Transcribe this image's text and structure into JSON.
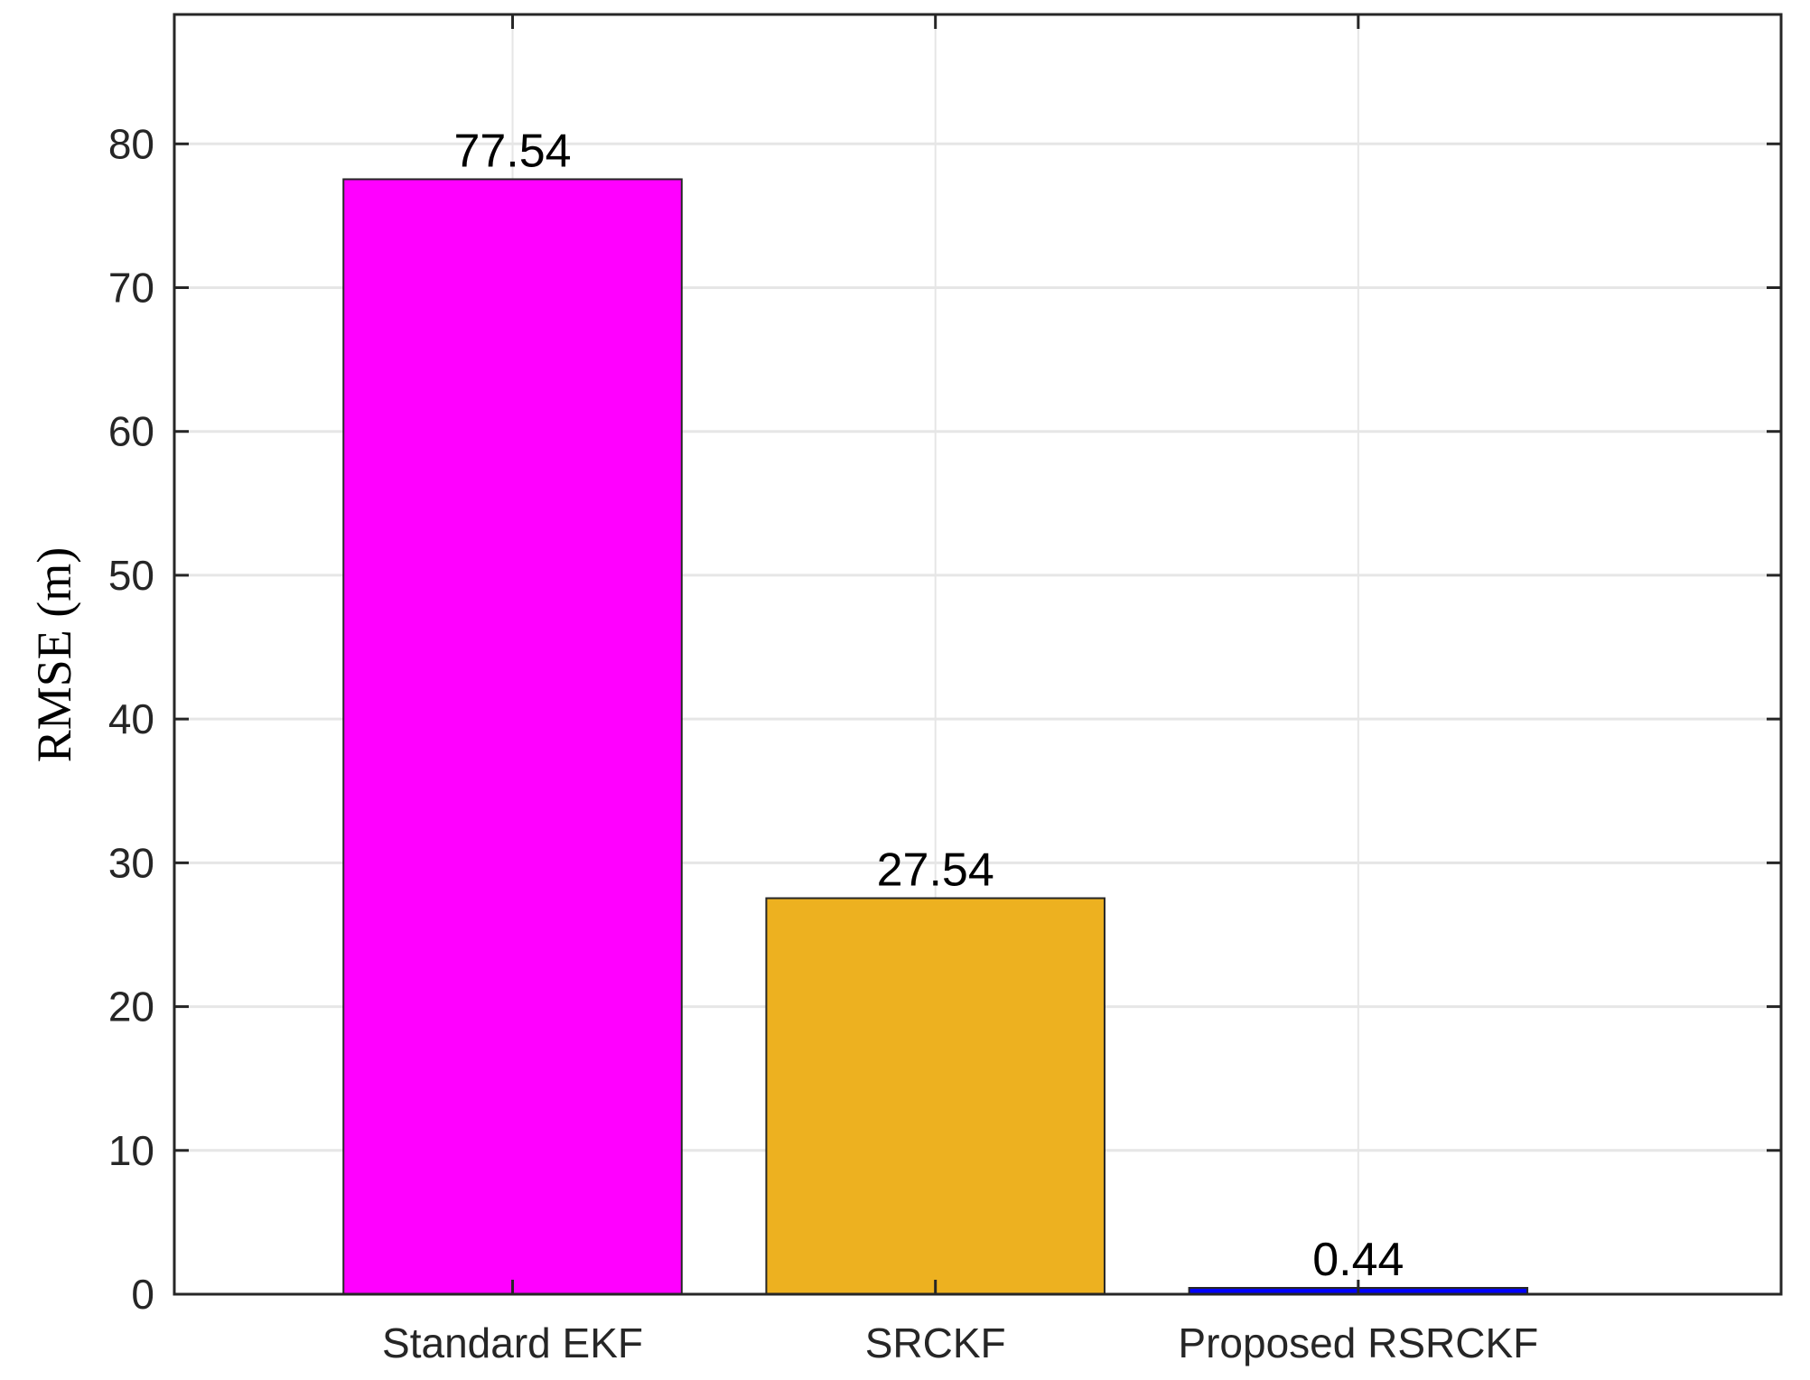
{
  "chart_data": {
    "type": "bar",
    "title": "",
    "xlabel": "",
    "ylabel": "RMSE (m)",
    "categories": [
      "Standard EKF",
      "SRCKF",
      "Proposed RSRCKF"
    ],
    "values": [
      77.54,
      27.54,
      0.44
    ],
    "data_labels": [
      "77.54",
      "27.54",
      "0.44"
    ],
    "colors": [
      "#ff00ff",
      "#edb120",
      "#0000ff"
    ],
    "ylim": [
      0,
      89
    ],
    "yticks": [
      0,
      10,
      20,
      30,
      40,
      50,
      60,
      70,
      80
    ],
    "grid": true,
    "legend": "none"
  }
}
